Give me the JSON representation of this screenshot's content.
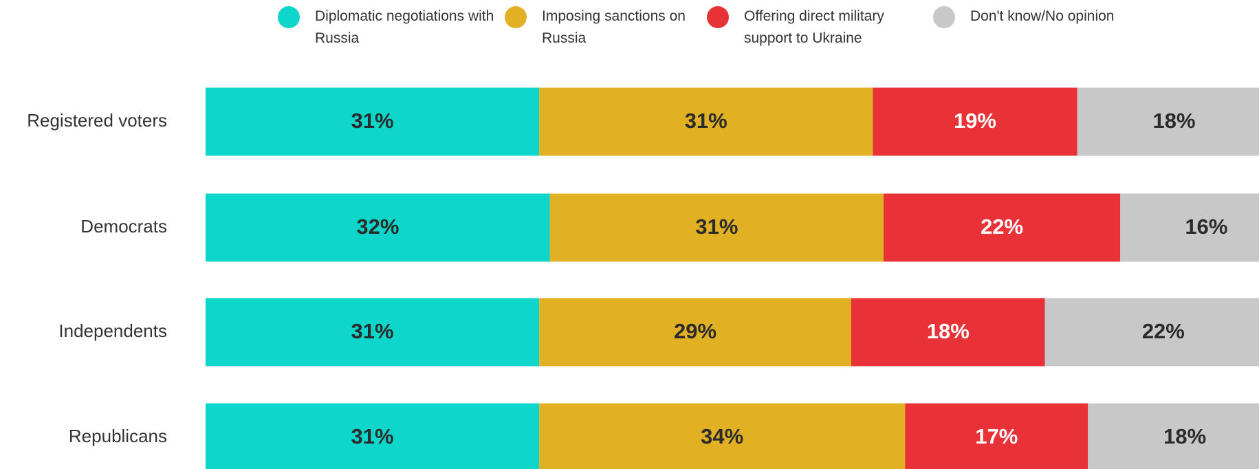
{
  "chart_data": {
    "type": "stacked_bar_horizontal",
    "categories": [
      "Registered voters",
      "Democrats",
      "Independents",
      "Republicans"
    ],
    "series": [
      {
        "name": "Diplomatic negotiations with Russia",
        "color": "#0fd6cb",
        "values": [
          31,
          32,
          31,
          31
        ],
        "value_labels": [
          "31%",
          "32%",
          "31%",
          "31%"
        ]
      },
      {
        "name": "Imposing sanctions on Russia",
        "color": "#e2b123",
        "values": [
          31,
          31,
          29,
          34
        ],
        "value_labels": [
          "31%",
          "31%",
          "29%",
          "34%"
        ]
      },
      {
        "name": "Offering direct military support to Ukraine",
        "color": "#e93138",
        "values": [
          19,
          22,
          18,
          17
        ],
        "value_labels": [
          "19%",
          "22%",
          "18%",
          "17%"
        ]
      },
      {
        "name": "Don't know/No opinion",
        "color": "#c8c8c8",
        "values": [
          18,
          16,
          22,
          18
        ],
        "value_labels": [
          "18%",
          "16%",
          "22%",
          "18%"
        ]
      }
    ],
    "xlim": [
      0,
      100
    ],
    "legend": "top"
  }
}
